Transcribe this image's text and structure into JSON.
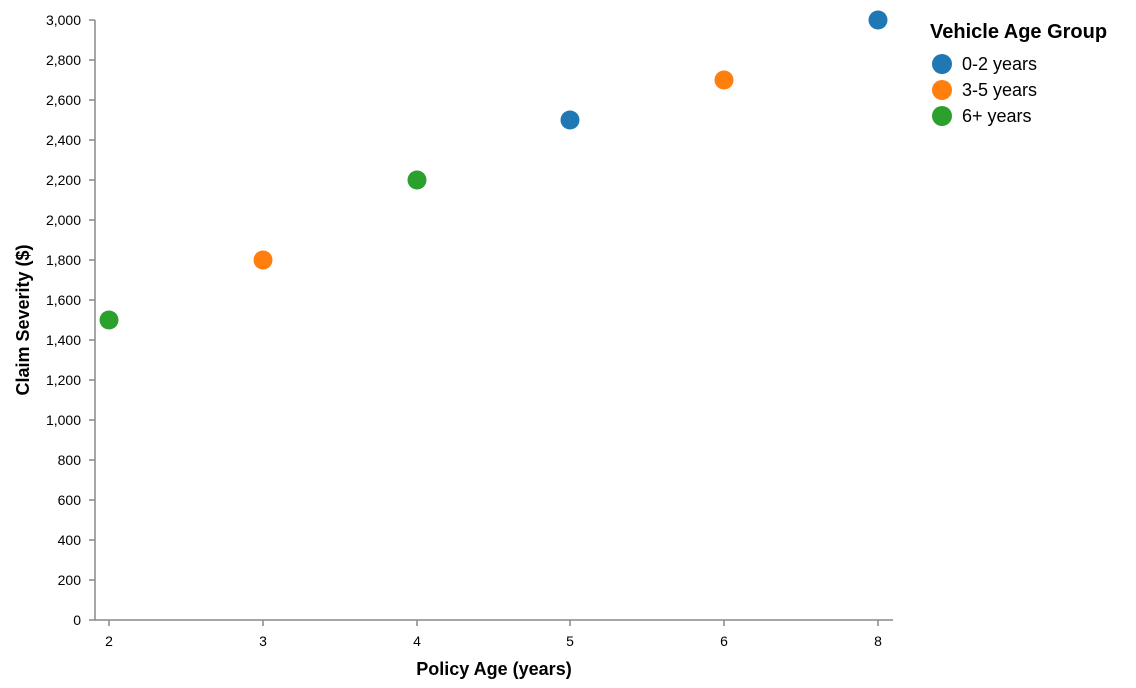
{
  "chart_data": {
    "type": "scatter",
    "xlabel": "Policy Age (years)",
    "ylabel": "Claim Severity ($)",
    "x_ticks": [
      2,
      3,
      4,
      5,
      6,
      8
    ],
    "y_ticks": [
      0,
      200,
      400,
      600,
      800,
      1000,
      1200,
      1400,
      1600,
      1800,
      2000,
      2200,
      2400,
      2600,
      2800,
      3000
    ],
    "y_tick_labels": [
      "0",
      "200",
      "400",
      "600",
      "800",
      "1,000",
      "1,200",
      "1,400",
      "1,600",
      "1,800",
      "2,000",
      "2,200",
      "2,400",
      "2,600",
      "2,800",
      "3,000"
    ],
    "xlim": [
      2,
      8
    ],
    "ylim": [
      0,
      3000
    ],
    "grid": false,
    "legend": {
      "title": "Vehicle Age Group",
      "placement": "right"
    },
    "series": [
      {
        "name": "0-2 years",
        "color": "#1f77b4",
        "points": [
          {
            "x": 5,
            "y": 2500
          },
          {
            "x": 8,
            "y": 3000
          }
        ]
      },
      {
        "name": "3-5 years",
        "color": "#ff7f0e",
        "points": [
          {
            "x": 3,
            "y": 1800
          },
          {
            "x": 6,
            "y": 2700
          }
        ]
      },
      {
        "name": "6+ years",
        "color": "#2ca02c",
        "points": [
          {
            "x": 2,
            "y": 1500
          },
          {
            "x": 4,
            "y": 2200
          }
        ]
      }
    ]
  }
}
